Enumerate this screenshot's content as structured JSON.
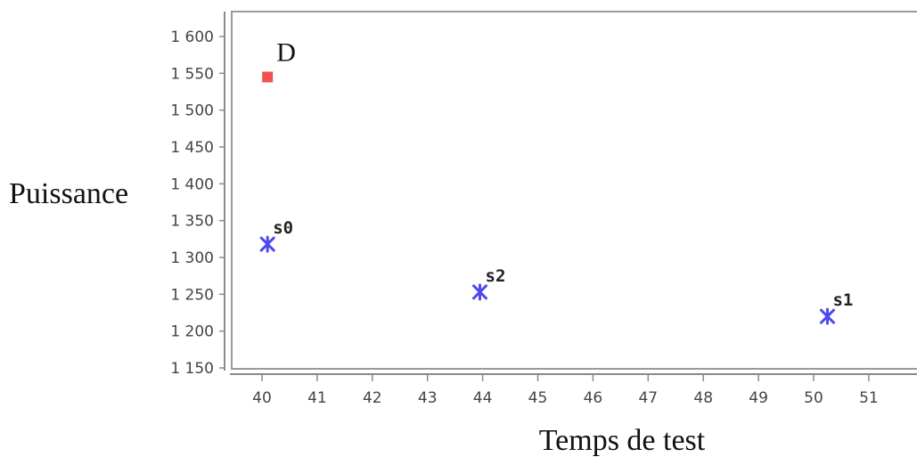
{
  "chart_data": {
    "type": "scatter",
    "xlabel": "Temps de test",
    "ylabel": "Puissance",
    "xlim": [
      39.5,
      52.2
    ],
    "ylim": [
      1140,
      1630
    ],
    "xticks": [
      40,
      41,
      42,
      43,
      44,
      45,
      46,
      47,
      48,
      49,
      50,
      51
    ],
    "yticks": [
      1150,
      1200,
      1250,
      1300,
      1350,
      1400,
      1450,
      1500,
      1550,
      1600
    ],
    "ytick_labels": [
      "1 150",
      "1 200",
      "1 250",
      "1 300",
      "1 350",
      "1 400",
      "1 450",
      "1 500",
      "1 550",
      "1 600"
    ],
    "points": [
      {
        "label": "D",
        "x": 40.1,
        "y": 1545,
        "marker": "square",
        "color": "#f05050"
      },
      {
        "label": "s0",
        "x": 40.1,
        "y": 1318,
        "marker": "star",
        "color": "#4a4af0"
      },
      {
        "label": "s2",
        "x": 43.95,
        "y": 1253,
        "marker": "star",
        "color": "#4a4af0"
      },
      {
        "label": "s1",
        "x": 50.25,
        "y": 1220,
        "marker": "star",
        "color": "#4a4af0"
      }
    ]
  }
}
